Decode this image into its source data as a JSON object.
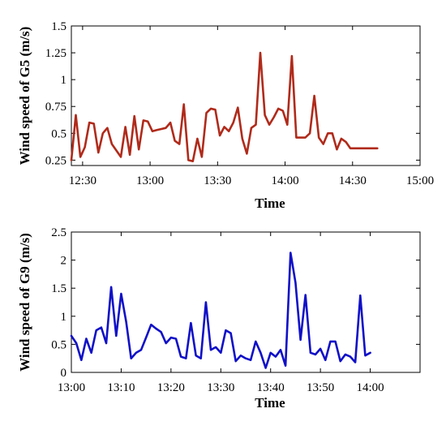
{
  "chart_data": [
    {
      "type": "line",
      "xlabel": "Time",
      "ylabel": "Wind speed of G5 (m/s)",
      "ylim": [
        0.2,
        1.5
      ],
      "yticks": [
        0.25,
        0.5,
        0.75,
        1,
        1.25,
        1.5
      ],
      "ytick_labels": [
        "0.25",
        "0.5",
        "0.75",
        "1",
        "1.25",
        "1.5"
      ],
      "xlim": [
        "12:25",
        "15:00"
      ],
      "xticks": [
        "12:30",
        "13:00",
        "13:30",
        "14:00",
        "14:30",
        "15:00"
      ],
      "grid": false,
      "series": [
        {
          "color": "#b02a1a",
          "x": [
            "12:25",
            "12:27",
            "12:29",
            "12:31",
            "12:33",
            "12:35",
            "12:37",
            "12:39",
            "12:41",
            "12:43",
            "12:45",
            "12:47",
            "12:49",
            "12:51",
            "12:53",
            "12:55",
            "12:57",
            "12:59",
            "13:01",
            "13:03",
            "13:05",
            "13:07",
            "13:09",
            "13:11",
            "13:13",
            "13:15",
            "13:17",
            "13:19",
            "13:21",
            "13:23",
            "13:25",
            "13:27",
            "13:29",
            "13:31",
            "13:33",
            "13:35",
            "13:37",
            "13:39",
            "13:41",
            "13:43",
            "13:45",
            "13:47",
            "13:49",
            "13:51",
            "13:53",
            "13:55",
            "13:57",
            "13:59",
            "14:01",
            "14:03",
            "14:05",
            "14:07",
            "14:09",
            "14:11",
            "14:13",
            "14:15",
            "14:17",
            "14:19",
            "14:21",
            "14:23",
            "14:25",
            "14:27",
            "14:29",
            "14:31",
            "14:33",
            "14:35",
            "14:37",
            "14:39",
            "14:41"
          ],
          "y": [
            0.25,
            0.67,
            0.28,
            0.37,
            0.6,
            0.59,
            0.32,
            0.5,
            0.55,
            0.4,
            0.34,
            0.28,
            0.56,
            0.3,
            0.66,
            0.35,
            0.62,
            0.61,
            0.52,
            0.53,
            0.54,
            0.55,
            0.6,
            0.43,
            0.4,
            0.77,
            0.25,
            0.24,
            0.45,
            0.28,
            0.69,
            0.73,
            0.72,
            0.48,
            0.56,
            0.52,
            0.6,
            0.74,
            0.45,
            0.31,
            0.55,
            0.58,
            1.25,
            0.67,
            0.58,
            0.65,
            0.73,
            0.71,
            0.58,
            1.22,
            0.46,
            0.46,
            0.46,
            0.5,
            0.85,
            0.46,
            0.4,
            0.5,
            0.5,
            0.35,
            0.45,
            0.42,
            0.36,
            0.36,
            0.36,
            0.36,
            0.36,
            0.36,
            0.36
          ]
        }
      ]
    },
    {
      "type": "line",
      "xlabel": "Time",
      "ylabel": "Wind speed of G9 (m/s)",
      "ylim": [
        0,
        2.5
      ],
      "yticks": [
        0,
        0.5,
        1,
        1.5,
        2,
        2.5
      ],
      "ytick_labels": [
        "0",
        "0.5",
        "1",
        "1.5",
        "2",
        "2.5"
      ],
      "xlim": [
        "13:00",
        "14:10"
      ],
      "xticks": [
        "13:00",
        "13:10",
        "13:20",
        "13:30",
        "13:40",
        "13:50",
        "14:00"
      ],
      "grid": false,
      "series": [
        {
          "color": "#1010c8",
          "x": [
            "13:00",
            "13:01",
            "13:02",
            "13:03",
            "13:04",
            "13:05",
            "13:06",
            "13:07",
            "13:08",
            "13:09",
            "13:10",
            "13:11",
            "13:12",
            "13:13",
            "13:14",
            "13:15",
            "13:16",
            "13:17",
            "13:18",
            "13:19",
            "13:20",
            "13:21",
            "13:22",
            "13:23",
            "13:24",
            "13:25",
            "13:26",
            "13:27",
            "13:28",
            "13:29",
            "13:30",
            "13:31",
            "13:32",
            "13:33",
            "13:34",
            "13:35",
            "13:36",
            "13:37",
            "13:38",
            "13:39",
            "13:40",
            "13:41",
            "13:42",
            "13:43",
            "13:44",
            "13:45",
            "13:46",
            "13:47",
            "13:48",
            "13:49",
            "13:50",
            "13:51",
            "13:52",
            "13:53",
            "13:54",
            "13:55",
            "13:56",
            "13:57",
            "13:58",
            "13:59",
            "14:00"
          ],
          "y": [
            0.65,
            0.52,
            0.22,
            0.6,
            0.35,
            0.75,
            0.8,
            0.52,
            1.52,
            0.65,
            1.4,
            0.9,
            0.25,
            0.35,
            0.4,
            0.62,
            0.85,
            0.78,
            0.72,
            0.52,
            0.62,
            0.6,
            0.28,
            0.25,
            0.88,
            0.3,
            0.25,
            1.25,
            0.4,
            0.45,
            0.35,
            0.75,
            0.7,
            0.2,
            0.3,
            0.25,
            0.22,
            0.55,
            0.35,
            0.08,
            0.35,
            0.28,
            0.4,
            0.12,
            2.13,
            1.6,
            0.58,
            1.38,
            0.35,
            0.32,
            0.42,
            0.22,
            0.55,
            0.55,
            0.2,
            0.32,
            0.28,
            0.18,
            1.37,
            0.3,
            0.35
          ]
        }
      ]
    }
  ]
}
